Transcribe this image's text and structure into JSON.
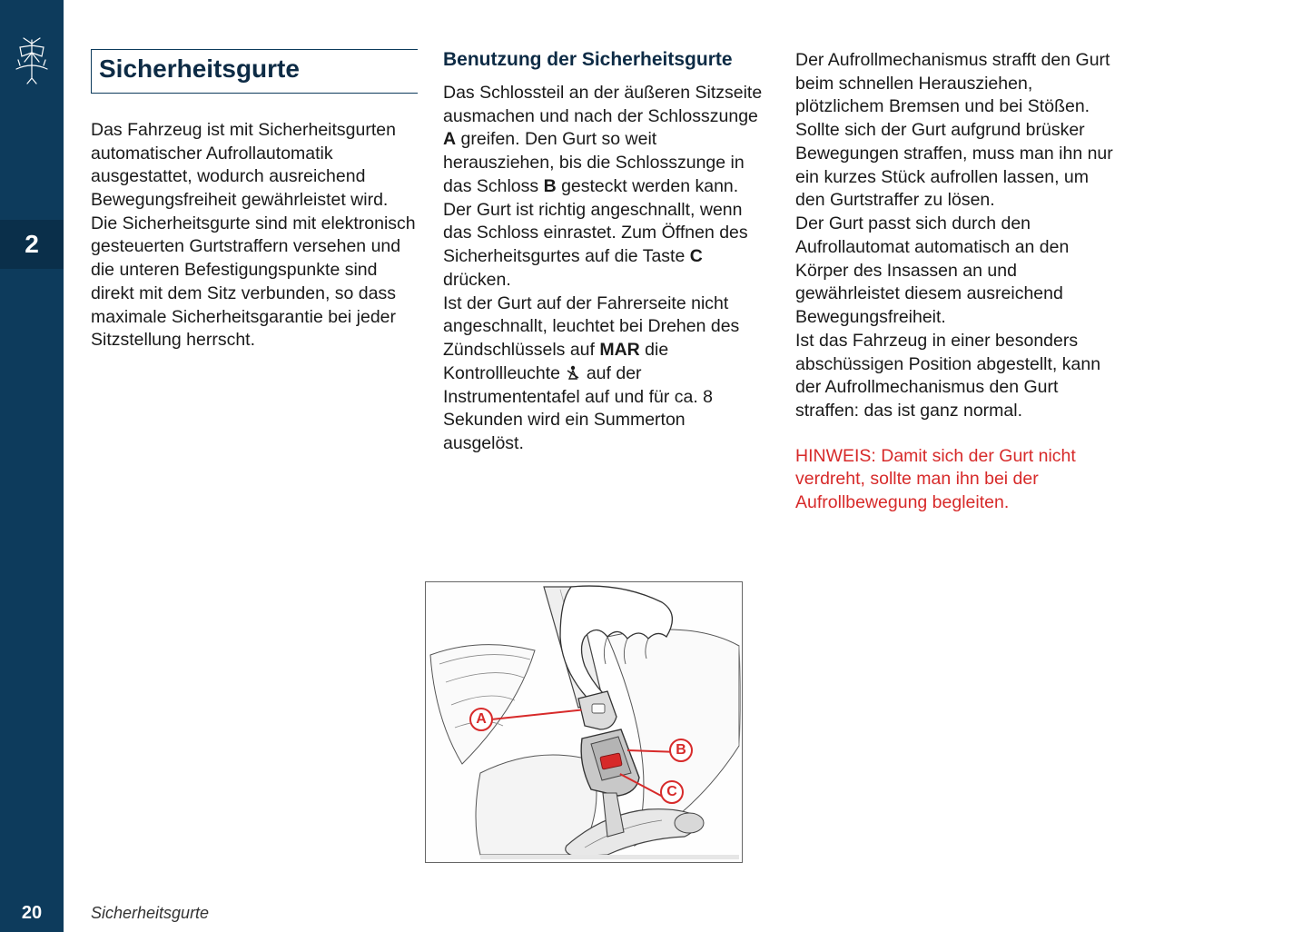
{
  "sidebar": {
    "chapter_number": "2",
    "page_number": "20",
    "bg_color": "#0d3b5c",
    "badge_bg": "#0a2f4a"
  },
  "footer": {
    "label": "Sicherheitsgurte"
  },
  "col1": {
    "title": "Sicherheitsgurte",
    "body": "Das Fahrzeug ist mit Sicherheitsgurten automatischer Aufrollautomatik ausgestattet, wodurch ausreichend Bewegungsfreiheit gewährleistet wird.\nDie Sicherheitsgurte sind mit elektronisch gesteuerten Gurtstraffern versehen und die unteren Befestigungspunkte sind direkt mit dem Sitz verbunden, so dass maximale Sicherheitsgarantie bei jeder Sitzstellung herrscht."
  },
  "col2": {
    "subtitle": "Benutzung der Sicherheitsgurte",
    "p1_a": "Das Schlossteil an der äußeren Sitzseite ausmachen und nach der Schlosszunge ",
    "p1_b": " greifen. Den Gurt so weit herausziehen, bis die Schlosszunge in das Schloss ",
    "p1_c": " gesteckt werden kann. Der Gurt ist richtig angeschnallt, wenn das Schloss einrastet. Zum Öffnen des Sicherheitsgurtes auf die Taste ",
    "p1_d": " drücken.",
    "bold_A": "A",
    "bold_B": "B",
    "bold_C": "C",
    "p2_a": "Ist der Gurt auf der Fahrerseite nicht angeschnallt, leuchtet bei Drehen des Zündschlüssels auf ",
    "bold_MAR": "MAR",
    "p2_b": " die Kontrollleuchte ",
    "p2_c": " auf der Instrumententafel auf und für ca. 8 Sekunden wird ein Summerton ausgelöst."
  },
  "col3": {
    "body": "Der Aufrollmechanismus strafft den Gurt beim schnellen Herausziehen, plötzlichem Bremsen und bei Stößen. Sollte sich der Gurt aufgrund brüsker Bewegungen straffen, muss man ihn nur ein kurzes Stück aufrollen lassen, um den Gurtstraffer zu lösen.\nDer Gurt passt sich durch den Aufrollautomat automatisch an den Körper des Insassen an und gewährleistet diesem ausreichend Bewegungsfreiheit.\nIst das Fahrzeug in einer besonders abschüssigen Position abgestellt, kann der Aufrollmechanismus den Gurt straffen: das ist ganz normal.",
    "note": "HINWEIS: Damit sich der Gurt nicht verdreht, sollte man ihn bei der Aufrollbewegung begleiten."
  },
  "figure": {
    "callouts": {
      "A": "A",
      "B": "B",
      "C": "C"
    },
    "callout_color": "#d72a2a",
    "border_color": "#666666"
  },
  "colors": {
    "heading": "#0d2b45",
    "text": "#1a1a1a",
    "note": "#d72a2a"
  }
}
